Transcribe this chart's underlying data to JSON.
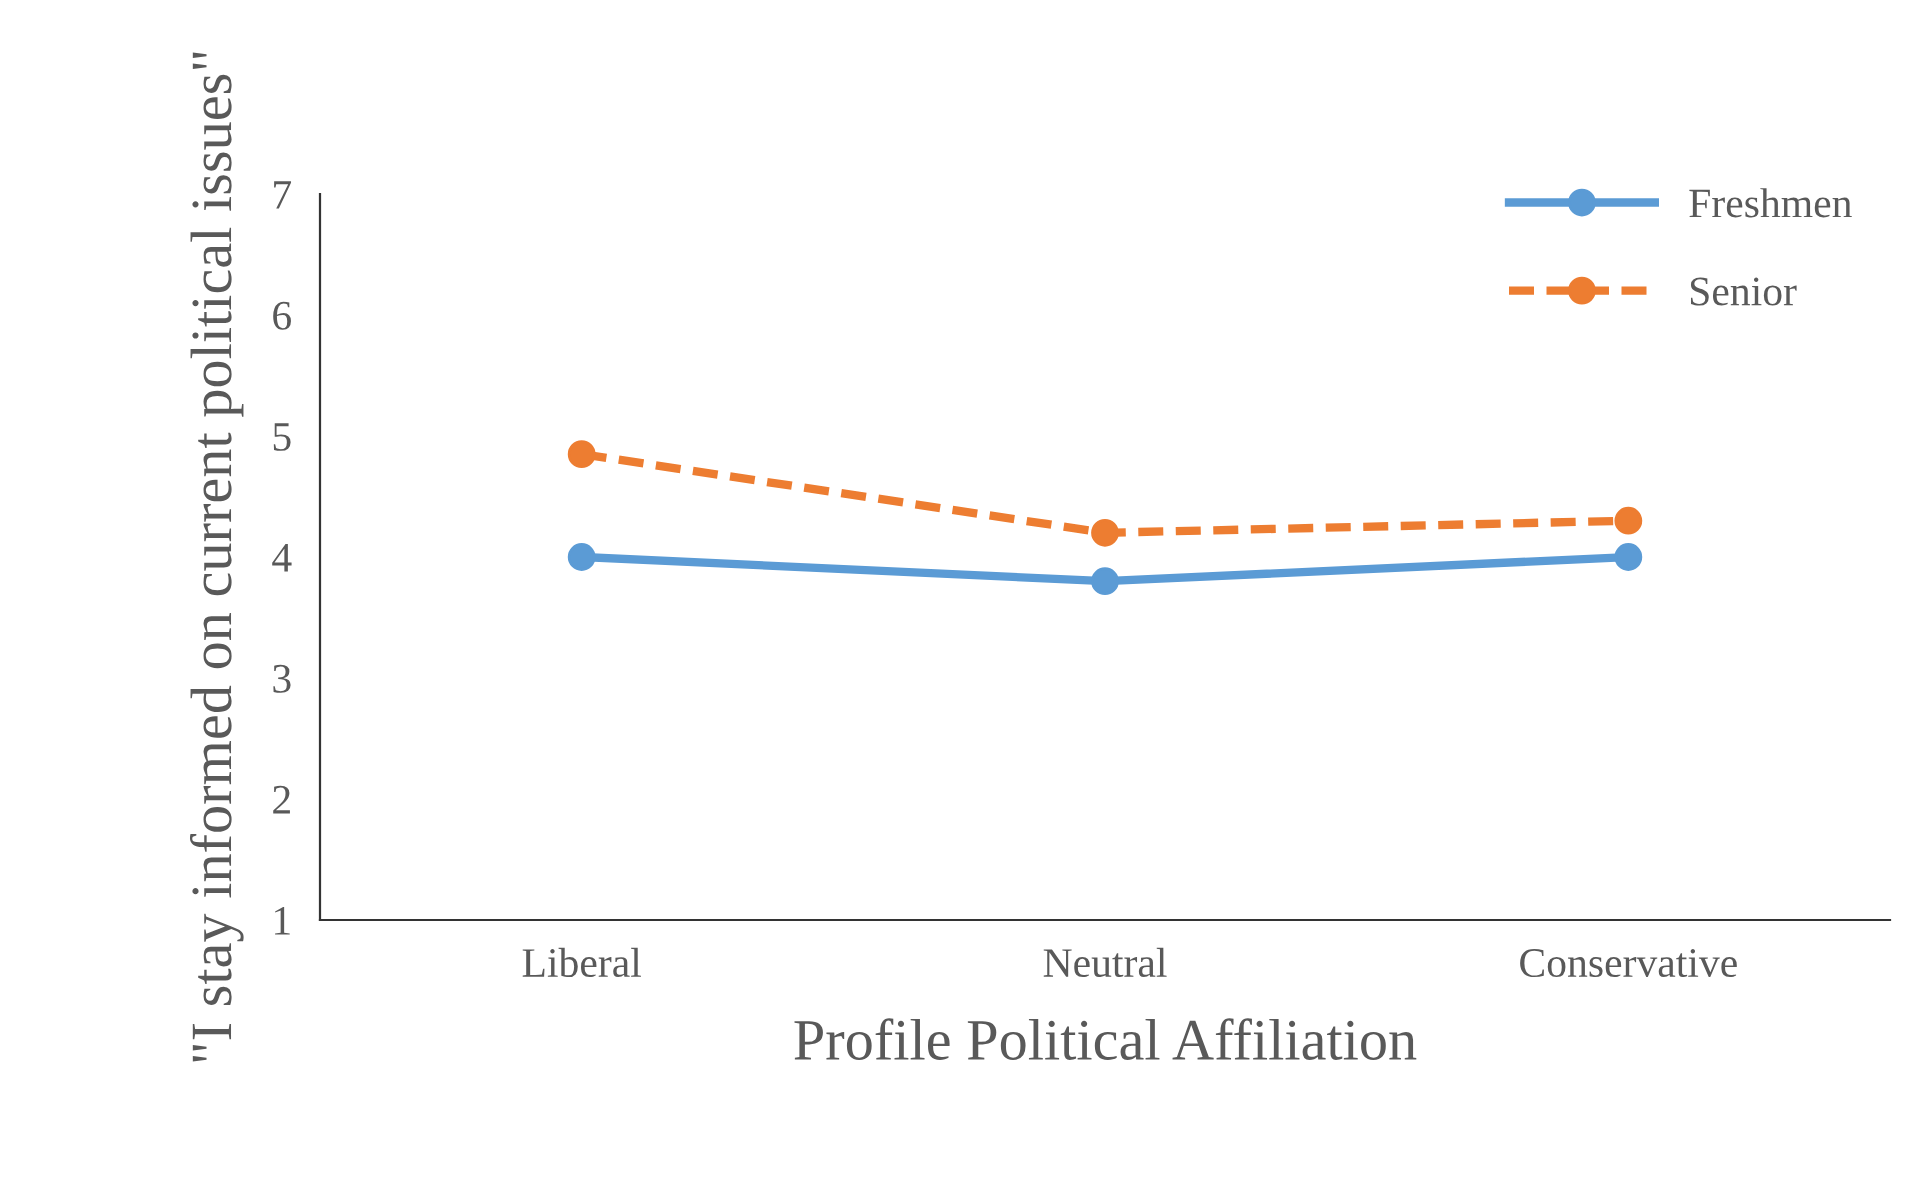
{
  "chart_data": {
    "type": "line",
    "xlabel": "Profile Political Affiliation",
    "ylabel": "\"I stay informed on current political issues\"",
    "categories": [
      "Liberal",
      "Neutral",
      "Conservative"
    ],
    "series": [
      {
        "name": "Freshmen",
        "color": "#5b9bd5",
        "values": [
          4.0,
          3.8,
          4.0
        ],
        "line_style": "solid"
      },
      {
        "name": "Senior",
        "color": "#ed7d31",
        "values": [
          4.85,
          4.2,
          4.3
        ],
        "line_style": "dashed"
      }
    ],
    "ylim": [
      1,
      7
    ],
    "yticks": [
      1,
      2,
      3,
      4,
      5,
      6,
      7
    ],
    "grid": false,
    "legend": "top right",
    "marker": "circle"
  }
}
